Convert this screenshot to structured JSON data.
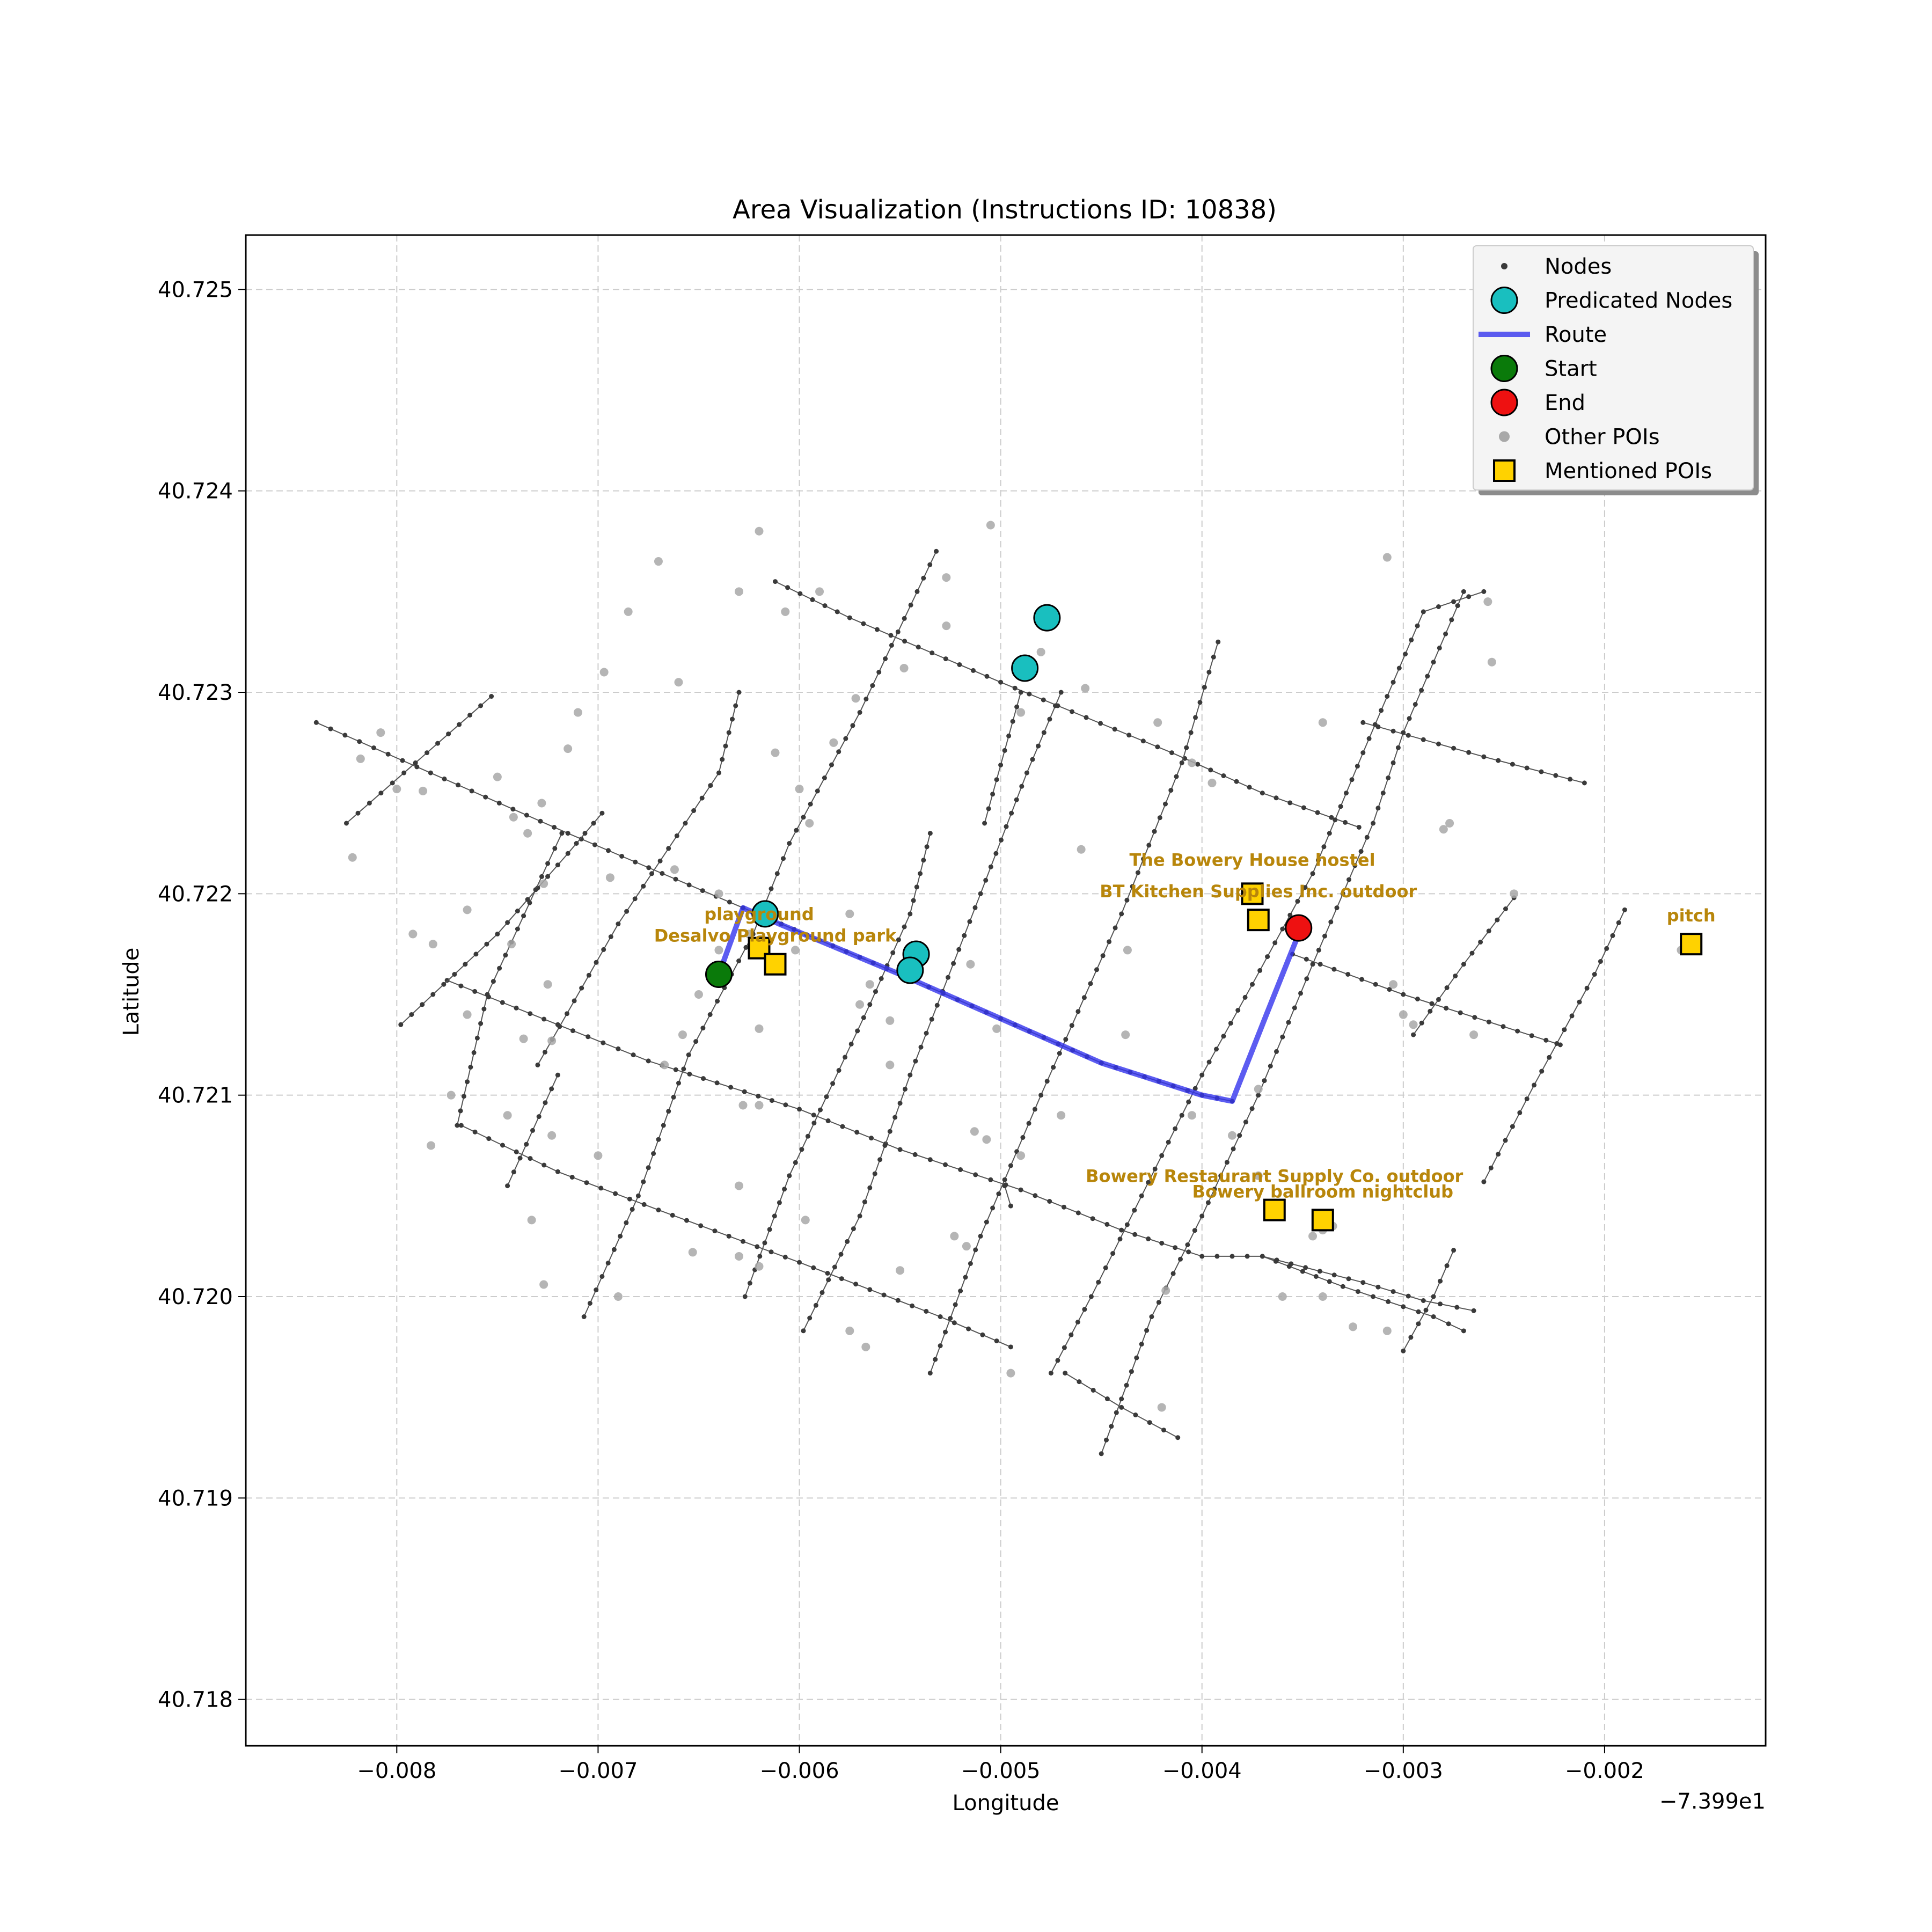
{
  "chart_data": {
    "type": "scatter",
    "title": "Area Visualization (Instructions ID: 10838)",
    "xlabel": "Longitude",
    "ylabel": "Latitude",
    "x_offset_label": "−7.399e1",
    "xlim": [
      -0.00875,
      -0.0012
    ],
    "ylim": [
      40.71777,
      40.72527
    ],
    "grid": true,
    "x_ticks": [
      -0.008,
      -0.007,
      -0.006,
      -0.005,
      -0.004,
      -0.003,
      -0.002
    ],
    "x_tick_labels": [
      "−0.008",
      "−0.007",
      "−0.006",
      "−0.005",
      "−0.004",
      "−0.003",
      "−0.002"
    ],
    "y_ticks": [
      40.718,
      40.719,
      40.72,
      40.721,
      40.722,
      40.723,
      40.724,
      40.725
    ],
    "y_tick_labels": [
      "40.718",
      "40.719",
      "40.720",
      "40.721",
      "40.722",
      "40.723",
      "40.724",
      "40.725"
    ],
    "colors": {
      "nodes": "#3a3a3a",
      "streets": "#555555",
      "predicted": "#19bfbf",
      "route": "#3333ee",
      "start": "#0a7a0a",
      "end": "#ee1111",
      "other_poi": "#a8a8a8",
      "mentioned_poi": "#ffd200",
      "poi_label": "#b8860b"
    },
    "legend": {
      "position": "top-right",
      "entries": [
        {
          "key": "nodes",
          "label": "Nodes"
        },
        {
          "key": "predicted",
          "label": "Predicated Nodes"
        },
        {
          "key": "route",
          "label": "Route"
        },
        {
          "key": "start",
          "label": "Start"
        },
        {
          "key": "end",
          "label": "End"
        },
        {
          "key": "other_poi",
          "label": "Other POIs"
        },
        {
          "key": "mentioned_poi",
          "label": "Mentioned POIs"
        }
      ]
    },
    "streets": [
      [
        [
          -0.0084,
          40.72285
        ],
        [
          -0.0079,
          40.72263
        ],
        [
          -0.00715,
          40.7223
        ],
        [
          -0.00628,
          40.72193
        ],
        [
          -0.0059,
          40.72177
        ],
        [
          -0.0055,
          40.7216
        ],
        [
          -0.005,
          40.72138
        ],
        [
          -0.0045,
          40.72116
        ],
        [
          -0.004,
          40.721
        ],
        [
          -0.00385,
          40.72097
        ]
      ],
      [
        [
          -0.00612,
          40.72355
        ],
        [
          -0.00575,
          40.72337
        ],
        [
          -0.005,
          40.72305
        ],
        [
          -0.00415,
          40.7227
        ],
        [
          -0.0037,
          40.7225
        ],
        [
          -0.00322,
          40.72233
        ]
      ],
      [
        [
          -0.0032,
          40.72285
        ],
        [
          -0.0026,
          40.72268
        ],
        [
          -0.0021,
          40.72255
        ]
      ],
      [
        [
          -0.00775,
          40.72157
        ],
        [
          -0.0072,
          40.72135
        ],
        [
          -0.00675,
          40.72117
        ],
        [
          -0.006,
          40.72093
        ],
        [
          -0.0055,
          40.72073
        ],
        [
          -0.0049,
          40.72053
        ],
        [
          -0.0044,
          40.72033
        ],
        [
          -0.004,
          40.7202
        ],
        [
          -0.0037,
          40.7202
        ],
        [
          -0.0033,
          40.72005
        ],
        [
          -0.00285,
          40.7199
        ],
        [
          -0.0027,
          40.71983
        ]
      ],
      [
        [
          -0.0037,
          40.7202
        ],
        [
          -0.0032,
          40.72007
        ],
        [
          -0.0029,
          40.71998
        ],
        [
          -0.00265,
          40.71993
        ]
      ],
      [
        [
          -0.00768,
          40.72085
        ],
        [
          -0.0072,
          40.72062
        ],
        [
          -0.0067,
          40.72043
        ],
        [
          -0.006,
          40.72017
        ],
        [
          -0.0053,
          40.7199
        ],
        [
          -0.00495,
          40.71975
        ]
      ],
      [
        [
          -0.00355,
          40.7217
        ],
        [
          -0.003,
          40.7215
        ],
        [
          -0.00222,
          40.72125
        ]
      ],
      [
        [
          -0.00798,
          40.72135
        ],
        [
          -0.0075,
          40.7218
        ],
        [
          -0.00715,
          40.7222
        ],
        [
          -0.00698,
          40.7224
        ]
      ],
      [
        [
          -0.00825,
          40.72235
        ],
        [
          -0.00785,
          40.7227
        ],
        [
          -0.00753,
          40.72298
        ]
      ],
      [
        [
          -0.0077,
          40.72085
        ],
        [
          -0.00755,
          40.7215
        ],
        [
          -0.00725,
          40.72215
        ],
        [
          -0.00718,
          40.7223
        ]
      ],
      [
        [
          -0.00707,
          40.7199
        ],
        [
          -0.0068,
          40.7205
        ],
        [
          -0.00655,
          40.7212
        ],
        [
          -0.00623,
          40.7218
        ],
        [
          -0.00605,
          40.72225
        ],
        [
          -0.0057,
          40.7229
        ],
        [
          -0.00532,
          40.7237
        ]
      ],
      [
        [
          -0.00495,
          40.72045
        ],
        [
          -0.00498,
          40.72055
        ]
      ],
      [
        [
          -0.00627,
          40.72
        ],
        [
          -0.00605,
          40.7206
        ],
        [
          -0.00565,
          40.72145
        ],
        [
          -0.00545,
          40.7219
        ],
        [
          -0.00535,
          40.7223
        ]
      ],
      [
        [
          -0.00745,
          40.72055
        ],
        [
          -0.0072,
          40.7211
        ]
      ],
      [
        [
          -0.00508,
          40.72235
        ],
        [
          -0.0049,
          40.723
        ]
      ],
      [
        [
          -0.0073,
          40.72115
        ],
        [
          -0.0069,
          40.72185
        ],
        [
          -0.0064,
          40.7226
        ],
        [
          -0.0063,
          40.723
        ]
      ],
      [
        [
          -0.00598,
          40.71983
        ],
        [
          -0.0057,
          40.7204
        ],
        [
          -0.00545,
          40.7211
        ],
        [
          -0.0051,
          40.722
        ],
        [
          -0.00487,
          40.7226
        ],
        [
          -0.0047,
          40.723
        ]
      ],
      [
        [
          -0.00535,
          40.71962
        ],
        [
          -0.0051,
          40.7203
        ],
        [
          -0.0048,
          40.721
        ],
        [
          -0.0044,
          40.7219
        ],
        [
          -0.0041,
          40.72265
        ],
        [
          -0.00392,
          40.72325
        ]
      ],
      [
        [
          -0.00475,
          40.71962
        ],
        [
          -0.00455,
          40.72
        ],
        [
          -0.0043,
          40.7205
        ],
        [
          -0.004,
          40.7211
        ],
        [
          -0.00375,
          40.72155
        ],
        [
          -0.00345,
          40.7221
        ],
        [
          -0.0032,
          40.7227
        ],
        [
          -0.0029,
          40.7234
        ],
        [
          -0.0026,
          40.7235
        ]
      ],
      [
        [
          -0.0045,
          40.71922
        ],
        [
          -0.00425,
          40.7199
        ],
        [
          -0.004,
          40.7204
        ],
        [
          -0.00372,
          40.721
        ],
        [
          -0.00345,
          40.72165
        ],
        [
          -0.00315,
          40.72235
        ],
        [
          -0.003,
          40.7228
        ],
        [
          -0.0027,
          40.7235
        ]
      ],
      [
        [
          -0.00468,
          40.71962
        ],
        [
          -0.0044,
          40.71945
        ],
        [
          -0.00412,
          40.7193
        ]
      ],
      [
        [
          -0.003,
          40.71973
        ],
        [
          -0.00285,
          40.72
        ],
        [
          -0.00275,
          40.72023
        ]
      ],
      [
        [
          -0.0026,
          40.72057
        ],
        [
          -0.00235,
          40.72105
        ],
        [
          -0.00205,
          40.7216
        ],
        [
          -0.0019,
          40.72192
        ]
      ],
      [
        [
          -0.00295,
          40.7213
        ],
        [
          -0.0027,
          40.72165
        ],
        [
          -0.00245,
          40.72198
        ]
      ]
    ],
    "route": [
      [
        -0.0064,
        40.7216
      ],
      [
        -0.00628,
        40.72193
      ],
      [
        -0.0061,
        40.72185
      ],
      [
        -0.0055,
        40.7216
      ],
      [
        -0.005,
        40.72138
      ],
      [
        -0.0045,
        40.72116
      ],
      [
        -0.004,
        40.721
      ],
      [
        -0.00385,
        40.72097
      ],
      [
        -0.00368,
        40.7214
      ],
      [
        -0.00352,
        40.7218
      ]
    ],
    "predicted_nodes": [
      [
        -0.00617,
        40.7219
      ],
      [
        -0.00542,
        40.7217
      ],
      [
        -0.00545,
        40.72162
      ],
      [
        -0.00477,
        40.72337
      ],
      [
        -0.00488,
        40.72312
      ]
    ],
    "start": [
      -0.0064,
      40.7216
    ],
    "end": [
      -0.00352,
      40.72183
    ],
    "other_pois": [
      [
        -0.00808,
        40.7228
      ],
      [
        -0.00818,
        40.72267
      ],
      [
        -0.008,
        40.72252
      ],
      [
        -0.00787,
        40.72251
      ],
      [
        -0.0075,
        40.72258
      ],
      [
        -0.00742,
        40.72238
      ],
      [
        -0.00728,
        40.72245
      ],
      [
        -0.00735,
        40.7223
      ],
      [
        -0.00727,
        40.72205
      ],
      [
        -0.00694,
        40.72208
      ],
      [
        -0.00697,
        40.7231
      ],
      [
        -0.00715,
        40.72272
      ],
      [
        -0.0071,
        40.7229
      ],
      [
        -0.00662,
        40.72212
      ],
      [
        -0.0067,
        40.72365
      ],
      [
        -0.00685,
        40.7234
      ],
      [
        -0.0066,
        40.72305
      ],
      [
        -0.0064,
        40.722
      ],
      [
        -0.0062,
        40.7238
      ],
      [
        -0.0063,
        40.7235
      ],
      [
        -0.00607,
        40.7234
      ],
      [
        -0.0059,
        40.7235
      ],
      [
        -0.00595,
        40.72235
      ],
      [
        -0.006,
        40.72252
      ],
      [
        -0.00612,
        40.7227
      ],
      [
        -0.00583,
        40.72275
      ],
      [
        -0.00575,
        40.7219
      ],
      [
        -0.00548,
        40.72312
      ],
      [
        -0.00572,
        40.72297
      ],
      [
        -0.00527,
        40.72357
      ],
      [
        -0.00505,
        40.72383
      ],
      [
        -0.00527,
        40.72333
      ],
      [
        -0.0049,
        40.7229
      ],
      [
        -0.0048,
        40.7232
      ],
      [
        -0.00458,
        40.72302
      ],
      [
        -0.0046,
        40.72222
      ],
      [
        -0.00422,
        40.72285
      ],
      [
        -0.00405,
        40.72265
      ],
      [
        -0.00395,
        40.72255
      ],
      [
        -0.00437,
        40.72172
      ],
      [
        -0.00438,
        40.7213
      ],
      [
        -0.0034,
        40.72285
      ],
      [
        -0.00308,
        40.72367
      ],
      [
        -0.00277,
        40.72235
      ],
      [
        -0.00258,
        40.72345
      ],
      [
        -0.00256,
        40.72315
      ],
      [
        -0.00822,
        40.72218
      ],
      [
        -0.00792,
        40.7218
      ],
      [
        -0.00782,
        40.72175
      ],
      [
        -0.00765,
        40.72192
      ],
      [
        -0.00743,
        40.72175
      ],
      [
        -0.00725,
        40.72155
      ],
      [
        -0.00765,
        40.7214
      ],
      [
        -0.00737,
        40.72128
      ],
      [
        -0.00723,
        40.72127
      ],
      [
        -0.00773,
        40.721
      ],
      [
        -0.00745,
        40.7209
      ],
      [
        -0.00723,
        40.7208
      ],
      [
        -0.007,
        40.7207
      ],
      [
        -0.00783,
        40.72075
      ],
      [
        -0.00733,
        40.72038
      ],
      [
        -0.00727,
        40.72006
      ],
      [
        -0.0069,
        40.72
      ],
      [
        -0.00653,
        40.72022
      ],
      [
        -0.0063,
        40.7202
      ],
      [
        -0.0062,
        40.72015
      ],
      [
        -0.0063,
        40.72055
      ],
      [
        -0.0062,
        40.72095
      ],
      [
        -0.0062,
        40.72133
      ],
      [
        -0.00628,
        40.72095
      ],
      [
        -0.0065,
        40.7215
      ],
      [
        -0.00658,
        40.7213
      ],
      [
        -0.00667,
        40.72115
      ],
      [
        -0.0064,
        40.72172
      ],
      [
        -0.00625,
        40.7218
      ],
      [
        -0.00602,
        40.72172
      ],
      [
        -0.0057,
        40.72145
      ],
      [
        -0.00565,
        40.72155
      ],
      [
        -0.00555,
        40.72137
      ],
      [
        -0.00555,
        40.72115
      ],
      [
        -0.00597,
        40.72038
      ],
      [
        -0.00575,
        40.71983
      ],
      [
        -0.00567,
        40.71975
      ],
      [
        -0.0055,
        40.72013
      ],
      [
        -0.00517,
        40.72025
      ],
      [
        -0.00523,
        40.7203
      ],
      [
        -0.00515,
        40.72165
      ],
      [
        -0.00502,
        40.72133
      ],
      [
        -0.00513,
        40.72082
      ],
      [
        -0.00507,
        40.72078
      ],
      [
        -0.0049,
        40.7207
      ],
      [
        -0.0047,
        40.7209
      ],
      [
        -0.00495,
        40.71962
      ],
      [
        -0.0042,
        40.71945
      ],
      [
        -0.00405,
        40.7209
      ],
      [
        -0.00385,
        40.7208
      ],
      [
        -0.00372,
        40.72103
      ],
      [
        -0.00418,
        40.72003
      ],
      [
        -0.00372,
        40.7206
      ],
      [
        -0.00345,
        40.7203
      ],
      [
        -0.0034,
        40.72033
      ],
      [
        -0.00335,
        40.72035
      ],
      [
        -0.0036,
        40.72
      ],
      [
        -0.0034,
        40.72
      ],
      [
        -0.003,
        40.7214
      ],
      [
        -0.00305,
        40.72155
      ],
      [
        -0.00295,
        40.72135
      ],
      [
        -0.0028,
        40.72232
      ],
      [
        -0.00265,
        40.7213
      ],
      [
        -0.00325,
        40.71985
      ],
      [
        -0.00308,
        40.71983
      ],
      [
        -0.00245,
        40.722
      ],
      [
        -0.00162,
        40.72172
      ]
    ],
    "mentioned_pois": [
      {
        "label": "The Bowery House",
        "category": "hostel",
        "x": -0.00375,
        "y": 40.722,
        "offset": 1
      },
      {
        "label": "BT Kitchen Supplies Inc.",
        "category": "outdoor",
        "x": -0.00372,
        "y": 40.72187,
        "offset": 0
      },
      {
        "label": "playground",
        "category": "",
        "x": -0.0062,
        "y": 40.72173,
        "offset": 1
      },
      {
        "label": "Desalvo Playground",
        "category": "park",
        "x": -0.00612,
        "y": 40.72165,
        "offset": 0
      },
      {
        "label": "Bowery Restaurant Supply Co.",
        "category": "outdoor",
        "x": -0.00364,
        "y": 40.72043,
        "offset": 1
      },
      {
        "label": "Bowery ballroom",
        "category": "nightclub",
        "x": -0.0034,
        "y": 40.72038,
        "offset": 0
      },
      {
        "label": "pitch",
        "category": "",
        "x": -0.00157,
        "y": 40.72175,
        "offset": 0
      }
    ]
  }
}
